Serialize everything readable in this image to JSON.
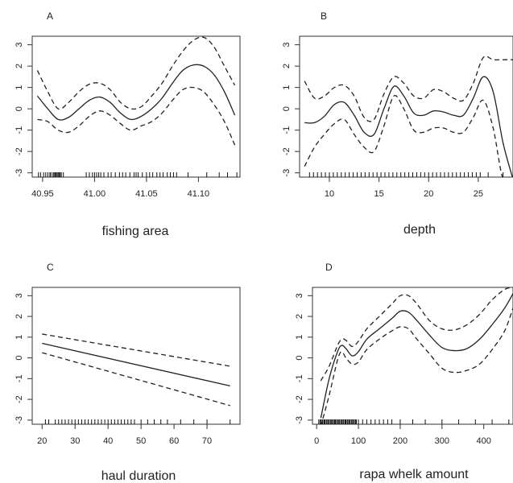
{
  "chart_data": [
    {
      "type": "line",
      "panel_label": "A",
      "xlabel": "fishing area",
      "ylabel": "",
      "xlim": [
        40.94,
        41.14
      ],
      "ylim": [
        -3.2,
        3.4
      ],
      "xticks": [
        "40.95",
        "41.00",
        "41.05",
        "41.10"
      ],
      "xtick_values": [
        40.95,
        41.0,
        41.05,
        41.1
      ],
      "yticks": [
        "-3",
        "-2",
        "-1",
        "0",
        "1",
        "2",
        "3"
      ],
      "ytick_values": [
        -3,
        -2,
        -1,
        0,
        1,
        2,
        3
      ],
      "grid": false,
      "x": [
        40.945,
        40.955,
        40.965,
        40.975,
        40.985,
        40.995,
        41.005,
        41.015,
        41.025,
        41.035,
        41.045,
        41.055,
        41.065,
        41.075,
        41.085,
        41.095,
        41.105,
        41.115,
        41.125,
        41.135
      ],
      "series": [
        {
          "role": "estimate",
          "dash": false,
          "values": [
            0.6,
            0.0,
            -0.5,
            -0.4,
            0.0,
            0.4,
            0.55,
            0.3,
            -0.2,
            -0.5,
            -0.35,
            0.0,
            0.5,
            1.2,
            1.8,
            2.05,
            2.0,
            1.6,
            0.8,
            -0.3
          ]
        },
        {
          "role": "upper",
          "dash": true,
          "values": [
            1.8,
            0.8,
            0.0,
            0.3,
            0.8,
            1.15,
            1.2,
            0.9,
            0.3,
            0.0,
            0.1,
            0.6,
            1.2,
            2.0,
            2.7,
            3.2,
            3.35,
            2.9,
            2.0,
            1.1
          ]
        },
        {
          "role": "lower",
          "dash": true,
          "values": [
            -0.5,
            -0.6,
            -1.0,
            -1.1,
            -0.8,
            -0.35,
            -0.1,
            -0.3,
            -0.7,
            -1.0,
            -0.8,
            -0.6,
            -0.2,
            0.4,
            0.9,
            1.0,
            0.8,
            0.2,
            -0.6,
            -1.7
          ]
        }
      ],
      "rug": [
        40.946,
        40.948,
        40.951,
        40.953,
        40.955,
        40.957,
        40.958,
        40.96,
        40.961,
        40.962,
        40.963,
        40.964,
        40.965,
        40.966,
        40.967,
        40.968,
        40.97,
        40.992,
        40.995,
        40.998,
        41.0,
        41.002,
        41.004,
        41.006,
        41.009,
        41.013,
        41.016,
        41.02,
        41.024,
        41.027,
        41.03,
        41.034,
        41.038,
        41.04,
        41.042,
        41.046,
        41.05,
        41.053,
        41.056,
        41.06,
        41.063,
        41.066,
        41.07,
        41.073,
        41.076,
        41.079,
        41.09,
        41.108,
        41.12,
        41.128,
        41.137
      ]
    },
    {
      "type": "line",
      "panel_label": "B",
      "xlabel": "depth",
      "ylabel": "",
      "xlim": [
        7,
        28.5
      ],
      "ylim": [
        -3.2,
        3.4
      ],
      "xticks": [
        "10",
        "15",
        "20",
        "25"
      ],
      "xtick_values": [
        10,
        15,
        20,
        25
      ],
      "yticks": [
        "-3",
        "-2",
        "-1",
        "0",
        "1",
        "2",
        "3"
      ],
      "ytick_values": [
        -3,
        -2,
        -1,
        0,
        1,
        2,
        3
      ],
      "grid": false,
      "x": [
        7.5,
        8.5,
        9.5,
        10.5,
        11.5,
        12.5,
        13.5,
        14.5,
        15.5,
        16.5,
        17.5,
        18.5,
        19.5,
        20.5,
        21.5,
        22.5,
        23.5,
        24.5,
        25.5,
        26.5,
        27.5,
        28.5
      ],
      "series": [
        {
          "role": "estimate",
          "dash": false,
          "values": [
            -0.65,
            -0.65,
            -0.35,
            0.2,
            0.3,
            -0.3,
            -1.1,
            -1.2,
            0.0,
            1.05,
            0.6,
            -0.2,
            -0.3,
            -0.1,
            -0.15,
            -0.3,
            -0.3,
            0.5,
            1.5,
            0.8,
            -1.6,
            -3.3
          ]
        },
        {
          "role": "upper",
          "dash": true,
          "values": [
            1.3,
            0.5,
            0.6,
            1.0,
            1.1,
            0.6,
            -0.4,
            -0.5,
            0.7,
            1.5,
            1.2,
            0.6,
            0.5,
            0.9,
            0.8,
            0.5,
            0.4,
            1.2,
            2.4,
            2.3,
            2.3,
            2.3
          ]
        },
        {
          "role": "lower",
          "dash": true,
          "values": [
            -2.7,
            -1.8,
            -1.2,
            -0.7,
            -0.5,
            -1.2,
            -1.8,
            -2.0,
            -0.8,
            0.6,
            0.0,
            -1.0,
            -1.1,
            -0.9,
            -0.9,
            -1.1,
            -1.1,
            -0.4,
            0.4,
            -0.9,
            -3.3,
            -3.3
          ]
        }
      ],
      "rug": [
        8.0,
        8.4,
        8.8,
        9.2,
        9.6,
        10.0,
        10.4,
        10.8,
        11.2,
        11.6,
        12.0,
        12.4,
        12.8,
        13.2,
        13.6,
        14.0,
        14.4,
        14.8,
        15.2,
        15.6,
        16.0,
        16.4,
        16.8,
        17.2,
        17.6,
        18.0,
        18.4,
        18.8,
        19.2,
        19.6,
        20.0,
        20.4,
        20.8,
        21.2,
        21.6,
        22.0,
        22.4,
        22.8,
        23.2,
        23.6,
        24.0,
        24.4,
        24.8,
        25.2,
        26.0,
        27.5
      ]
    },
    {
      "type": "line",
      "panel_label": "C",
      "xlabel": "haul duration",
      "ylabel": "",
      "xlim": [
        17,
        80
      ],
      "ylim": [
        -3.2,
        3.4
      ],
      "xticks": [
        "20",
        "30",
        "40",
        "50",
        "60",
        "70"
      ],
      "xtick_values": [
        20,
        30,
        40,
        50,
        60,
        70
      ],
      "yticks": [
        "-3",
        "-2",
        "-1",
        "0",
        "1",
        "2",
        "3"
      ],
      "ytick_values": [
        -3,
        -2,
        -1,
        0,
        1,
        2,
        3
      ],
      "grid": false,
      "x": [
        20,
        77
      ],
      "series": [
        {
          "role": "estimate",
          "dash": false,
          "values": [
            0.7,
            -1.35
          ]
        },
        {
          "role": "upper",
          "dash": true,
          "values": [
            1.15,
            -0.4
          ]
        },
        {
          "role": "lower",
          "dash": true,
          "values": [
            0.25,
            -2.3
          ]
        }
      ],
      "rug": [
        21,
        22,
        24,
        25,
        26,
        27,
        28,
        29,
        30,
        31,
        32,
        33,
        34,
        35,
        36,
        37,
        38,
        39,
        40,
        41,
        42,
        43,
        44,
        45,
        46,
        47,
        48,
        50,
        52,
        54,
        56,
        58,
        62,
        66,
        70,
        77
      ]
    },
    {
      "type": "line",
      "panel_label": "D",
      "xlabel": "rapa whelk amount",
      "ylabel": "",
      "xlim": [
        -10,
        470
      ],
      "ylim": [
        -3.2,
        3.4
      ],
      "xticks": [
        "0",
        "100",
        "200",
        "300",
        "400"
      ],
      "xtick_values": [
        0,
        100,
        200,
        300,
        400
      ],
      "yticks": [
        "-3",
        "-2",
        "-1",
        "0",
        "1",
        "2",
        "3"
      ],
      "ytick_values": [
        -3,
        -2,
        -1,
        0,
        1,
        2,
        3
      ],
      "grid": false,
      "x": [
        10,
        30,
        50,
        60,
        70,
        85,
        100,
        120,
        150,
        180,
        200,
        220,
        240,
        270,
        300,
        330,
        360,
        390,
        420,
        450,
        470
      ],
      "series": [
        {
          "role": "estimate",
          "dash": false,
          "values": [
            -2.9,
            -1.0,
            0.3,
            0.6,
            0.45,
            0.1,
            0.3,
            0.9,
            1.4,
            1.9,
            2.25,
            2.2,
            1.8,
            1.1,
            0.5,
            0.35,
            0.45,
            0.9,
            1.6,
            2.4,
            3.1
          ]
        },
        {
          "role": "upper",
          "dash": true,
          "values": [
            -1.1,
            -0.4,
            0.6,
            0.9,
            0.85,
            0.55,
            0.8,
            1.4,
            2.0,
            2.6,
            3.0,
            3.0,
            2.6,
            1.8,
            1.4,
            1.35,
            1.6,
            2.1,
            2.8,
            3.3,
            3.4
          ]
        },
        {
          "role": "lower",
          "dash": true,
          "values": [
            -3.3,
            -1.8,
            -0.1,
            0.3,
            0.0,
            -0.3,
            -0.2,
            0.4,
            0.9,
            1.3,
            1.5,
            1.4,
            0.9,
            0.2,
            -0.5,
            -0.7,
            -0.6,
            -0.3,
            0.4,
            1.3,
            2.4
          ]
        }
      ],
      "rug": [
        5,
        8,
        10,
        13,
        15,
        18,
        20,
        23,
        25,
        28,
        30,
        33,
        35,
        38,
        40,
        43,
        45,
        48,
        50,
        53,
        55,
        58,
        60,
        63,
        65,
        68,
        70,
        73,
        75,
        78,
        80,
        83,
        85,
        88,
        90,
        93,
        95,
        100,
        110,
        120,
        130,
        140,
        150,
        160,
        170,
        180,
        200,
        230,
        260,
        300,
        340,
        380,
        420,
        460
      ]
    }
  ]
}
